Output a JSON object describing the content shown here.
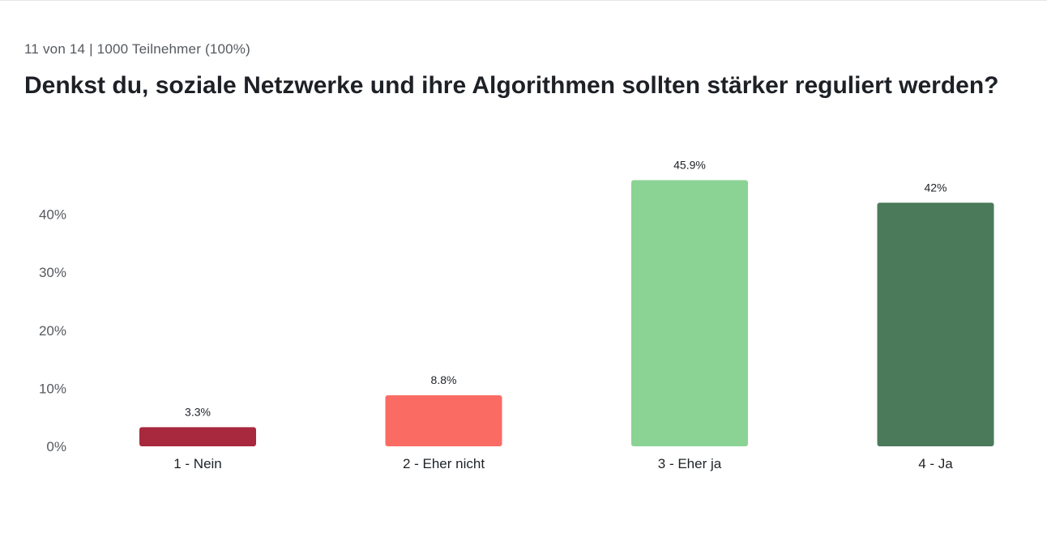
{
  "header": {
    "meta": "11 von 14 | 1000 Teilnehmer (100%)",
    "question": "Denkst du, soziale Netzwerke und ihre Algorithmen sollten stärker reguliert werden?"
  },
  "chart_data": {
    "type": "bar",
    "title": "Denkst du, soziale Netzwerke und ihre Algorithmen sollten stärker reguliert werden?",
    "categories": [
      "1 - Nein",
      "2 - Eher nicht",
      "3 - Eher ja",
      "4 - Ja"
    ],
    "values": [
      3.3,
      8.8,
      45.9,
      42
    ],
    "value_labels": [
      "3.3%",
      "8.8%",
      "45.9%",
      "42%"
    ],
    "colors": [
      "#a8283d",
      "#fa6b64",
      "#8bd394",
      "#4a7a5a"
    ],
    "yticks": [
      0,
      10,
      20,
      30,
      40
    ],
    "ytick_labels": [
      "0%",
      "10%",
      "20%",
      "30%",
      "40%"
    ],
    "ylim": [
      0,
      46
    ],
    "xlabel": "",
    "ylabel": "",
    "grid": false
  }
}
